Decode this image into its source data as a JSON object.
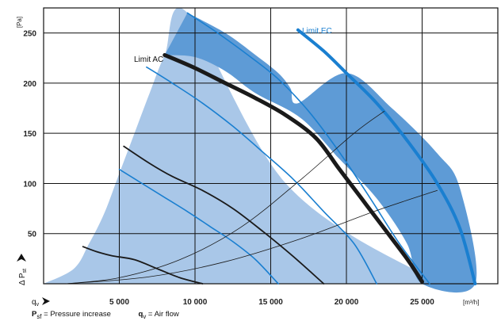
{
  "chart_data": {
    "type": "line",
    "xlim": [
      0,
      30000
    ],
    "ylim": [
      0,
      275
    ],
    "x_ticks": [
      5000,
      10000,
      15000,
      20000,
      25000
    ],
    "x_tick_labels": [
      "5 000",
      "10 000",
      "15 000",
      "20 000",
      "25 000"
    ],
    "y_ticks": [
      50,
      100,
      150,
      200,
      250
    ],
    "y_tick_labels": [
      "50",
      "100",
      "150",
      "200",
      "250"
    ],
    "x_unit": "[m³/h]",
    "y_unit": "[Pa]",
    "x_axis_symbol": "qv",
    "y_axis_symbol": "Δ Pst",
    "grid": true,
    "regions": [
      {
        "kind": "light",
        "x": [
          0,
          2000,
          3000,
          4000,
          5000,
          6000,
          7000,
          8000,
          9500,
          16000,
          25000,
          28500
        ],
        "y": [
          0,
          15,
          40,
          70,
          110,
          150,
          190,
          228,
          270,
          100,
          10,
          0
        ]
      },
      {
        "kind": "dark",
        "x": [
          9500,
          12000,
          14000,
          15500,
          16300,
          16800,
          20000,
          23000,
          26000,
          27500,
          28500,
          25000,
          24000,
          22000,
          19500,
          17000,
          14000,
          12000,
          10000,
          8000
        ],
        "y": [
          270,
          250,
          228,
          210,
          195,
          180,
          210,
          175,
          130,
          95,
          0,
          0,
          40,
          85,
          125,
          165,
          190,
          212,
          226,
          228
        ]
      }
    ],
    "series": [
      {
        "kind": "limit_ac",
        "x": [
          8000,
          10000,
          12000,
          14000,
          16000,
          18000,
          19500,
          21000,
          22500,
          24000,
          25000
        ],
        "y": [
          228,
          215,
          200,
          185,
          168,
          145,
          115,
          85,
          55,
          25,
          2
        ]
      },
      {
        "kind": "limit_ec",
        "x": [
          16800,
          18500,
          20000,
          22000,
          24000,
          26000,
          27500,
          28500
        ],
        "y": [
          253,
          232,
          210,
          180,
          143,
          100,
          55,
          0
        ]
      },
      {
        "kind": "blue",
        "x": [
          9500,
          11500,
          13500,
          15500,
          17500,
          19500,
          21500,
          23500,
          25500
        ],
        "y": [
          270,
          250,
          228,
          204,
          172,
          132,
          87,
          40,
          0
        ]
      },
      {
        "kind": "blue",
        "x": [
          6800,
          8500,
          10500,
          12500,
          14500,
          16500,
          18500,
          20500,
          22000
        ],
        "y": [
          216,
          200,
          180,
          157,
          131,
          104,
          72,
          40,
          0
        ]
      },
      {
        "kind": "black",
        "x": [
          5300,
          7000,
          8500,
          10500,
          12500,
          14500,
          16500,
          18500
        ],
        "y": [
          137,
          120,
          107,
          93,
          75,
          52,
          27,
          0
        ]
      },
      {
        "kind": "blue",
        "x": [
          5000,
          6500,
          8000,
          9500,
          11000,
          12500,
          14000,
          15500
        ],
        "y": [
          114,
          100,
          86,
          72,
          57,
          42,
          24,
          0
        ]
      },
      {
        "kind": "black",
        "x": [
          2600,
          3500,
          4500,
          6000,
          7500,
          9000,
          10500
        ],
        "y": [
          37,
          32,
          28,
          24,
          15,
          6,
          0
        ]
      },
      {
        "kind": "system",
        "x": [
          1500,
          5000,
          9000,
          13000,
          17000,
          20500,
          22500
        ],
        "y": [
          0,
          6,
          24,
          56,
          104,
          150,
          172
        ]
      },
      {
        "kind": "system",
        "x": [
          1500,
          7000,
          12000,
          17000,
          22000,
          26000
        ],
        "y": [
          0,
          7,
          22,
          45,
          73,
          93
        ]
      }
    ]
  },
  "labels": {
    "limit_ac": "Limit AC",
    "limit_ec": "Limit EC",
    "qv": "q",
    "qv_sub": "v",
    "dp": "Δ P",
    "dp_sub": "st"
  },
  "legend": {
    "psf_symbol": "P",
    "psf_sub": "sf",
    "psf_text": " = Pressure increase",
    "qv_symbol": "q",
    "qv_sub": "v",
    "qv_text": " = Air flow"
  },
  "colors": {
    "light_region": "#a9c7e8",
    "dark_region": "#5e9bd6",
    "blue_curve": "#1a7fd0",
    "black_curve": "#1a1a1a",
    "grid": "#111111"
  }
}
